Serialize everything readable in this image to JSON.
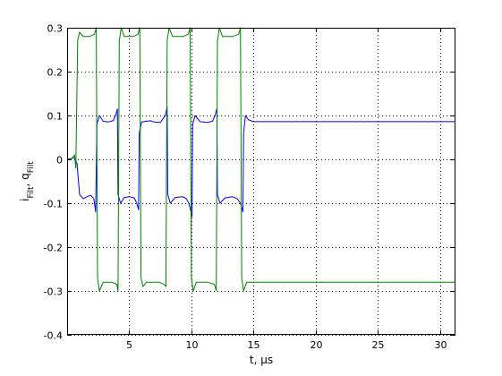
{
  "chart_data": {
    "type": "line",
    "title": "",
    "xlabel": "t, μs",
    "ylabel": {
      "segments": [
        {
          "text": "i",
          "sub": false
        },
        {
          "text": "Filt",
          "sub": true
        },
        {
          "text": ", q",
          "sub": false
        },
        {
          "text": "Filt",
          "sub": true
        }
      ]
    },
    "xlim": [
      0,
      31.25
    ],
    "ylim": [
      -0.4,
      0.3
    ],
    "xticks": [
      5,
      10,
      15,
      20,
      25,
      30
    ],
    "xtick_labels": [
      "5",
      "10",
      "15",
      "20",
      "25",
      "30"
    ],
    "yticks": [
      -0.4,
      -0.3,
      -0.2,
      -0.1,
      0,
      0.1,
      0.2,
      0.3
    ],
    "ytick_labels": [
      "-0.4",
      "-0.3",
      "-0.2",
      "-0.1",
      "0",
      "0.1",
      "0.2",
      "0.3"
    ],
    "grid": true,
    "series": [
      {
        "color": "#0000ff",
        "points": [
          [
            0,
            0
          ],
          [
            0.6,
            0.004
          ],
          [
            0.8,
            -0.01
          ],
          [
            1.0,
            -0.08
          ],
          [
            1.3,
            -0.09
          ],
          [
            1.6,
            -0.085
          ],
          [
            1.9,
            -0.082
          ],
          [
            2.15,
            -0.09
          ],
          [
            2.3,
            -0.12
          ],
          [
            2.4,
            0.08
          ],
          [
            2.6,
            0.1
          ],
          [
            2.9,
            0.087
          ],
          [
            3.3,
            0.085
          ],
          [
            3.7,
            0.088
          ],
          [
            3.9,
            0.1
          ],
          [
            4.05,
            0.115
          ],
          [
            4.1,
            -0.08
          ],
          [
            4.3,
            -0.1
          ],
          [
            4.6,
            -0.087
          ],
          [
            5.0,
            -0.085
          ],
          [
            5.4,
            -0.088
          ],
          [
            5.6,
            -0.1
          ],
          [
            5.75,
            -0.115
          ],
          [
            5.8,
            0.06
          ],
          [
            6.0,
            0.085
          ],
          [
            6.4,
            0.087
          ],
          [
            6.7,
            0.088
          ],
          [
            7.0,
            0.085
          ],
          [
            7.5,
            0.084
          ],
          [
            7.9,
            0.1
          ],
          [
            8.05,
            0.12
          ],
          [
            8.1,
            -0.08
          ],
          [
            8.3,
            -0.1
          ],
          [
            8.7,
            -0.087
          ],
          [
            9.3,
            -0.085
          ],
          [
            9.6,
            -0.09
          ],
          [
            9.8,
            -0.1
          ],
          [
            10.05,
            -0.13
          ],
          [
            10.1,
            0.08
          ],
          [
            10.3,
            0.1
          ],
          [
            10.7,
            0.086
          ],
          [
            11.3,
            0.084
          ],
          [
            11.7,
            0.087
          ],
          [
            11.9,
            0.1
          ],
          [
            12.05,
            0.115
          ],
          [
            12.1,
            -0.08
          ],
          [
            12.3,
            -0.1
          ],
          [
            12.7,
            -0.088
          ],
          [
            13.3,
            -0.085
          ],
          [
            13.7,
            -0.09
          ],
          [
            13.95,
            -0.1
          ],
          [
            14.15,
            -0.12
          ],
          [
            14.2,
            0.06
          ],
          [
            14.35,
            0.1
          ],
          [
            14.6,
            0.09
          ],
          [
            15.0,
            0.086
          ],
          [
            31.25,
            0.086
          ]
        ]
      },
      {
        "color": "#008000",
        "points": [
          [
            0,
            0
          ],
          [
            0.4,
            0.002
          ],
          [
            0.6,
            0.01
          ],
          [
            0.7,
            -0.02
          ],
          [
            0.85,
            0.27
          ],
          [
            1.0,
            0.29
          ],
          [
            1.3,
            0.28
          ],
          [
            1.8,
            0.28
          ],
          [
            2.2,
            0.285
          ],
          [
            2.35,
            0.3
          ],
          [
            2.45,
            -0.27
          ],
          [
            2.6,
            -0.3
          ],
          [
            2.9,
            -0.28
          ],
          [
            3.6,
            -0.28
          ],
          [
            4.0,
            -0.285
          ],
          [
            4.1,
            -0.3
          ],
          [
            4.2,
            0.27
          ],
          [
            4.35,
            0.3
          ],
          [
            4.6,
            0.28
          ],
          [
            5.3,
            0.28
          ],
          [
            5.7,
            0.285
          ],
          [
            5.85,
            0.3
          ],
          [
            5.95,
            -0.27
          ],
          [
            6.1,
            -0.29
          ],
          [
            6.4,
            -0.28
          ],
          [
            7.4,
            -0.28
          ],
          [
            7.8,
            -0.285
          ],
          [
            7.95,
            -0.29
          ],
          [
            8.05,
            0.27
          ],
          [
            8.2,
            0.3
          ],
          [
            8.5,
            0.28
          ],
          [
            9.3,
            0.28
          ],
          [
            9.75,
            0.285
          ],
          [
            9.9,
            0.3
          ],
          [
            10.0,
            -0.27
          ],
          [
            10.15,
            -0.3
          ],
          [
            10.4,
            -0.28
          ],
          [
            11.3,
            -0.28
          ],
          [
            11.85,
            -0.285
          ],
          [
            12.0,
            -0.3
          ],
          [
            12.1,
            0.27
          ],
          [
            12.25,
            0.3
          ],
          [
            12.5,
            0.28
          ],
          [
            13.3,
            0.28
          ],
          [
            13.8,
            0.285
          ],
          [
            13.95,
            0.3
          ],
          [
            14.05,
            -0.27
          ],
          [
            14.2,
            -0.3
          ],
          [
            14.45,
            -0.28
          ],
          [
            15.0,
            -0.28
          ],
          [
            31.25,
            -0.28
          ]
        ]
      }
    ]
  }
}
